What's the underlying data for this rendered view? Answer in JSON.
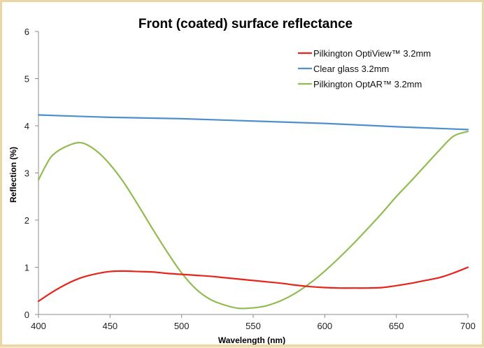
{
  "chart_data": {
    "type": "line",
    "title": "Front (coated) surface reflectance",
    "xlabel": "Wavelength (nm)",
    "ylabel": "Reflection (%)",
    "xlim": [
      400,
      700
    ],
    "ylim": [
      0,
      6
    ],
    "xticks": [
      "400",
      "450",
      "500",
      "550",
      "600",
      "650",
      "700"
    ],
    "yticks": [
      "0",
      "1",
      "2",
      "3",
      "4",
      "5",
      "6"
    ],
    "grid": false,
    "legend_position": "top-right",
    "series": [
      {
        "name": "Pilkington OptiView™ 3.2mm",
        "color": "#e8231a",
        "x": [
          400,
          410,
          420,
          430,
          440,
          450,
          460,
          470,
          480,
          490,
          500,
          510,
          520,
          530,
          540,
          550,
          560,
          570,
          580,
          590,
          600,
          610,
          620,
          630,
          640,
          650,
          660,
          670,
          680,
          690,
          700
        ],
        "values": [
          0.28,
          0.48,
          0.65,
          0.78,
          0.86,
          0.91,
          0.92,
          0.91,
          0.9,
          0.87,
          0.85,
          0.83,
          0.81,
          0.78,
          0.75,
          0.72,
          0.69,
          0.66,
          0.62,
          0.59,
          0.57,
          0.56,
          0.56,
          0.56,
          0.57,
          0.61,
          0.66,
          0.72,
          0.78,
          0.88,
          1.0
        ]
      },
      {
        "name": "Clear glass 3.2mm",
        "color": "#4f8fcb",
        "x": [
          400,
          450,
          500,
          550,
          600,
          650,
          700
        ],
        "values": [
          4.23,
          4.18,
          4.15,
          4.1,
          4.05,
          3.98,
          3.92
        ]
      },
      {
        "name": "Pilkington OptAR™ 3.2mm",
        "color": "#92bc52",
        "x": [
          400,
          405,
          410,
          420,
          430,
          440,
          450,
          460,
          470,
          480,
          490,
          500,
          510,
          520,
          530,
          540,
          550,
          555,
          560,
          570,
          580,
          590,
          600,
          610,
          620,
          630,
          640,
          650,
          660,
          670,
          680,
          690,
          700
        ],
        "values": [
          2.85,
          3.15,
          3.38,
          3.57,
          3.64,
          3.48,
          3.18,
          2.78,
          2.3,
          1.8,
          1.32,
          0.88,
          0.54,
          0.32,
          0.2,
          0.13,
          0.14,
          0.16,
          0.19,
          0.3,
          0.46,
          0.67,
          0.92,
          1.2,
          1.5,
          1.82,
          2.15,
          2.5,
          2.82,
          3.15,
          3.48,
          3.78,
          3.88
        ]
      }
    ]
  }
}
